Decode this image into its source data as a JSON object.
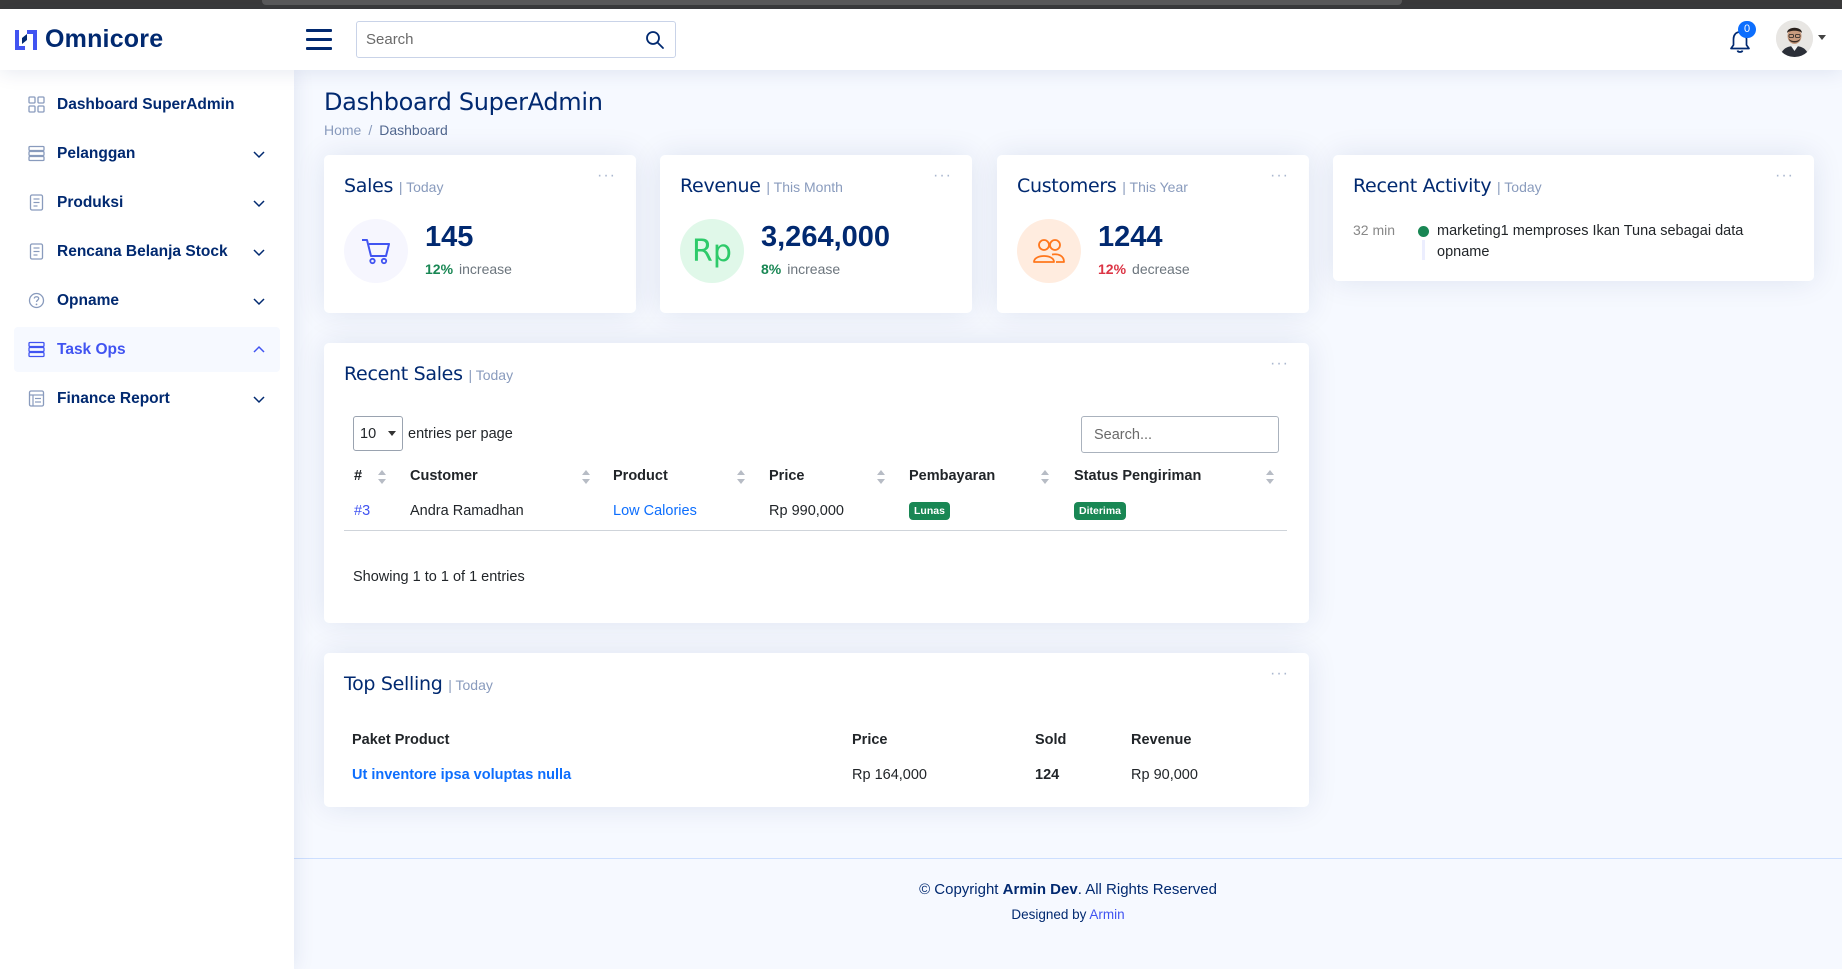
{
  "brand": {
    "name": "Omnicore"
  },
  "header": {
    "search_placeholder": "Search",
    "notification_count": "0"
  },
  "sidebar": {
    "items": [
      {
        "label": "Dashboard SuperAdmin"
      },
      {
        "label": "Pelanggan"
      },
      {
        "label": "Produksi"
      },
      {
        "label": "Rencana Belanja Stock"
      },
      {
        "label": "Opname"
      },
      {
        "label": "Task Ops"
      },
      {
        "label": "Finance Report"
      }
    ]
  },
  "page": {
    "title": "Dashboard SuperAdmin",
    "breadcrumb": {
      "home": "Home",
      "sep": "/",
      "current": "Dashboard"
    }
  },
  "cards": {
    "sales": {
      "title": "Sales",
      "period": "| Today",
      "value": "145",
      "pct": "12%",
      "trend": "increase",
      "accent": "#4154f1",
      "icon_bg": "#f6f6fe"
    },
    "revenue": {
      "title": "Revenue",
      "period": "| This Month",
      "value": "3,264,000",
      "pct": "8%",
      "trend": "increase",
      "icon_text": "Rp",
      "accent": "#2eca6a",
      "icon_bg": "#e0f8e9"
    },
    "customers": {
      "title": "Customers",
      "period": "| This Year",
      "value": "1244",
      "pct": "12%",
      "trend": "decrease",
      "accent": "#ff771d",
      "icon_bg": "#ffecdf"
    },
    "activity": {
      "title": "Recent Activity",
      "period": "| Today",
      "items": [
        {
          "time": "32 min",
          "text": "marketing1 memproses Ikan Tuna sebagai data opname"
        }
      ]
    }
  },
  "recent_sales": {
    "title": "Recent Sales",
    "period": "| Today",
    "per_page": "10",
    "per_page_label": "entries per page",
    "search_placeholder": "Search...",
    "columns": [
      "#",
      "Customer",
      "Product",
      "Price",
      "Pembayaran",
      "Status Pengiriman"
    ],
    "rows": [
      {
        "id": "#3",
        "customer": "Andra Ramadhan",
        "product": "Low Calories",
        "price": "Rp 990,000",
        "payment": "Lunas",
        "status": "Diterima"
      }
    ],
    "showing": "Showing 1 to 1 of 1 entries"
  },
  "top_selling": {
    "title": "Top Selling",
    "period": "| Today",
    "columns": [
      "Paket Product",
      "Price",
      "Sold",
      "Revenue"
    ],
    "rows": [
      {
        "product": "Ut inventore ipsa voluptas nulla",
        "price": "Rp 164,000",
        "sold": "124",
        "revenue": "Rp 90,000"
      }
    ]
  },
  "footer": {
    "copy_prefix": "© Copyright",
    "copy_name": "Armin Dev",
    "copy_suffix": ". All Rights Reserved",
    "designed_by": "Designed by",
    "designer": "Armin"
  }
}
